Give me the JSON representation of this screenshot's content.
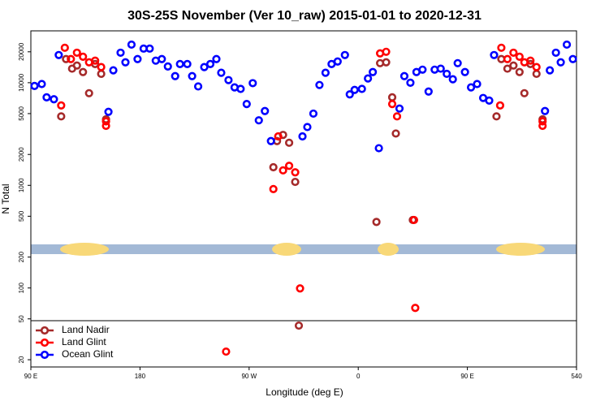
{
  "chart_data": {
    "type": "scatter",
    "title": "30S-25S November (Ver 10_raw)   2015-01-01 to 2020-12-31",
    "x_label": "Longitude (deg E)",
    "y_label": "N Total",
    "yscale": "log",
    "xlim": [
      90,
      540
    ],
    "xticks": [
      {
        "value": 90,
        "label": "90 E"
      },
      180,
      {
        "value": 270,
        "label": "90 W"
      },
      {
        "value": 360,
        "label": "0"
      },
      {
        "value": 450,
        "label": "90 E"
      },
      540
    ],
    "ylim": [
      17,
      32000
    ],
    "yticks": [
      20,
      50,
      100,
      200,
      500,
      1000,
      2000,
      5000,
      10000,
      20000
    ],
    "legend": "lower-left",
    "series": [
      {
        "name": "Land Nadir",
        "color": "#a52a2a",
        "x": [
          115,
          119,
          124,
          128,
          133,
          138,
          143,
          148,
          152,
          290,
          293,
          298,
          303,
          308,
          311,
          375,
          378,
          383,
          388,
          391,
          405,
          474,
          478,
          483,
          488,
          493,
          497,
          502,
          507,
          512
        ],
        "values": [
          4700,
          17000,
          13700,
          14700,
          12700,
          7900,
          15200,
          12200,
          4400,
          1500,
          2700,
          3100,
          2600,
          1080,
          43,
          440,
          15500,
          15800,
          7200,
          3200,
          460,
          4700,
          17000,
          13700,
          14700,
          12700,
          7900,
          15200,
          12200,
          4400
        ]
      },
      {
        "name": "Land Glint",
        "color": "#ff0000",
        "x": [
          115,
          118,
          123,
          128,
          133,
          138,
          143,
          148,
          152,
          152,
          251,
          290,
          294,
          298,
          303,
          308,
          312,
          378,
          383,
          388,
          392,
          406,
          407,
          477,
          478,
          483,
          488,
          493,
          497,
          502,
          507,
          512,
          512
        ],
        "values": [
          6000,
          21900,
          17000,
          19600,
          17900,
          15800,
          16400,
          14200,
          4200,
          3800,
          24,
          920,
          3000,
          1400,
          1550,
          1340,
          99,
          19300,
          20000,
          6200,
          4700,
          460,
          64,
          6000,
          21900,
          17000,
          19600,
          17900,
          15800,
          16400,
          14200,
          4200,
          3800
        ]
      },
      {
        "name": "Ocean Glint",
        "color": "#0000ff",
        "x": [
          93,
          99,
          103,
          109,
          113,
          154,
          158,
          164,
          168,
          173,
          178,
          183,
          188,
          193,
          198,
          203,
          209,
          213,
          219,
          223,
          228,
          233,
          238,
          243,
          247,
          253,
          258,
          263,
          268,
          273,
          278,
          283,
          288,
          314,
          318,
          323,
          328,
          333,
          338,
          343,
          349,
          353,
          357,
          363,
          368,
          372,
          377,
          394,
          398,
          403,
          408,
          413,
          418,
          423,
          428,
          433,
          438,
          442,
          448,
          453,
          458,
          463,
          468,
          472,
          514,
          518,
          523,
          527,
          532,
          537
        ],
        "values": [
          9300,
          9700,
          7200,
          6900,
          18600,
          5200,
          13200,
          19600,
          15800,
          23500,
          17000,
          21500,
          21500,
          16400,
          17000,
          14400,
          11600,
          15200,
          15200,
          11600,
          9200,
          14200,
          15200,
          17000,
          12500,
          10600,
          9000,
          8700,
          6200,
          9900,
          4300,
          5300,
          2700,
          3000,
          3700,
          5000,
          9500,
          12500,
          15200,
          16100,
          18600,
          7700,
          8500,
          8700,
          11000,
          12700,
          2300,
          5600,
          11600,
          10000,
          12700,
          13400,
          8200,
          13400,
          13700,
          12200,
          10800,
          15500,
          12700,
          9000,
          9700,
          7100,
          6700,
          18600,
          5300,
          13200,
          19600,
          15800,
          23500,
          17000
        ]
      }
    ]
  }
}
